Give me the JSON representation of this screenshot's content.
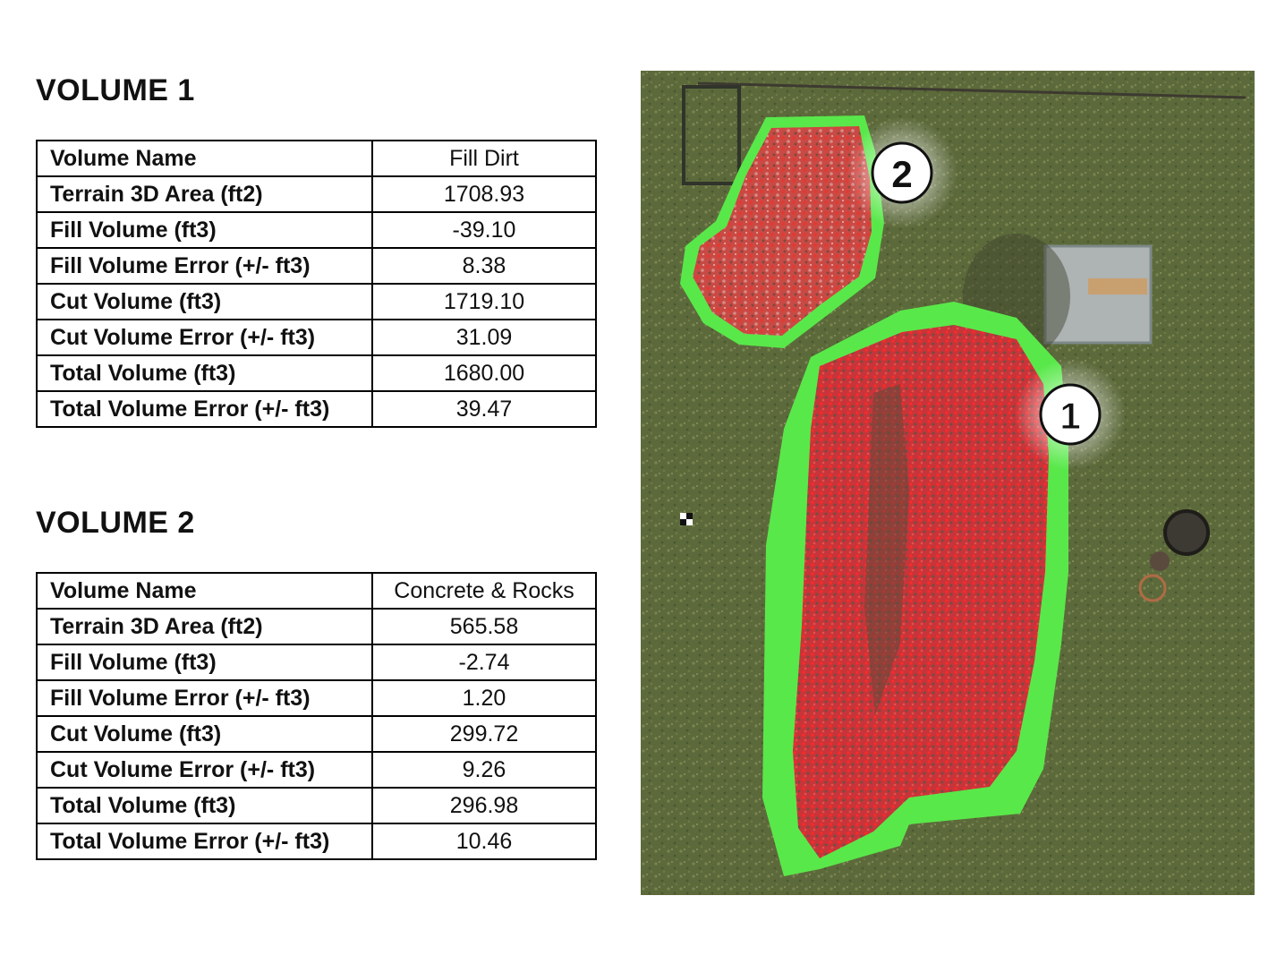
{
  "volume1": {
    "title": "VOLUME 1",
    "rows": [
      {
        "label": "Volume Name",
        "value": "Fill Dirt"
      },
      {
        "label": "Terrain 3D Area (ft2)",
        "value": "1708.93"
      },
      {
        "label": "Fill Volume (ft3)",
        "value": "-39.10"
      },
      {
        "label": "Fill Volume Error (+/- ft3)",
        "value": "8.38"
      },
      {
        "label": "Cut Volume (ft3)",
        "value": "1719.10"
      },
      {
        "label": "Cut Volume Error (+/- ft3)",
        "value": "31.09"
      },
      {
        "label": "Total Volume (ft3)",
        "value": "1680.00"
      },
      {
        "label": "Total Volume Error (+/- ft3)",
        "value": "39.47"
      }
    ]
  },
  "volume2": {
    "title": "VOLUME 2",
    "rows": [
      {
        "label": "Volume Name",
        "value": "Concrete & Rocks"
      },
      {
        "label": "Terrain 3D Area (ft2)",
        "value": "565.58"
      },
      {
        "label": "Fill Volume (ft3)",
        "value": "-2.74"
      },
      {
        "label": "Fill Volume Error (+/- ft3)",
        "value": "1.20"
      },
      {
        "label": "Cut Volume (ft3)",
        "value": "299.72"
      },
      {
        "label": "Cut Volume Error (+/- ft3)",
        "value": "9.26"
      },
      {
        "label": "Total Volume (ft3)",
        "value": "296.98"
      },
      {
        "label": "Total Volume Error (+/- ft3)",
        "value": "10.46"
      }
    ]
  },
  "aerial_image": {
    "markers": [
      "1",
      "2"
    ],
    "colors": {
      "grass": "#5e6b3c",
      "boundary": "#59e84a",
      "cut": "#d7292a",
      "shed": "#aeb3b3"
    }
  }
}
